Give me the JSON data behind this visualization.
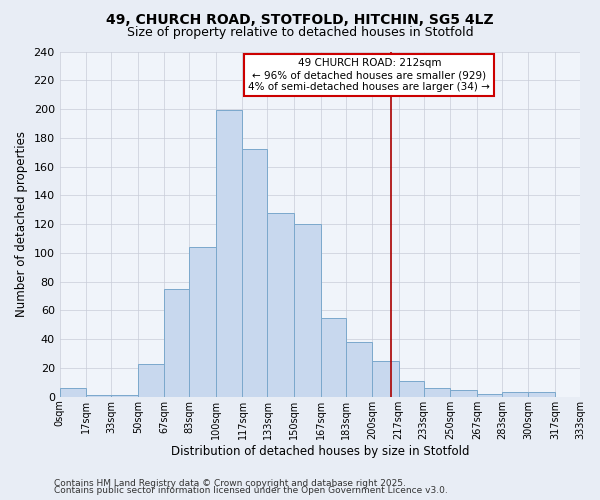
{
  "title": "49, CHURCH ROAD, STOTFOLD, HITCHIN, SG5 4LZ",
  "subtitle": "Size of property relative to detached houses in Stotfold",
  "xlabel": "Distribution of detached houses by size in Stotfold",
  "ylabel": "Number of detached properties",
  "bin_labels": [
    "0sqm",
    "17sqm",
    "33sqm",
    "50sqm",
    "67sqm",
    "83sqm",
    "100sqm",
    "117sqm",
    "133sqm",
    "150sqm",
    "167sqm",
    "183sqm",
    "200sqm",
    "217sqm",
    "233sqm",
    "250sqm",
    "267sqm",
    "283sqm",
    "300sqm",
    "317sqm",
    "333sqm"
  ],
  "bin_edges": [
    0,
    17,
    33,
    50,
    67,
    83,
    100,
    117,
    133,
    150,
    167,
    183,
    200,
    217,
    233,
    250,
    267,
    283,
    300,
    317,
    333
  ],
  "bar_heights": [
    6,
    1,
    1,
    23,
    75,
    104,
    199,
    172,
    128,
    120,
    55,
    38,
    25,
    11,
    6,
    5,
    2,
    3,
    3,
    0
  ],
  "bar_color": "#c8d8ee",
  "bar_edgecolor": "#7ba8cc",
  "grid_color": "#c8ccd8",
  "background_color": "#e8edf5",
  "plot_bg_color": "#f0f4fa",
  "vline_x": 212,
  "vline_color": "#aa0000",
  "annotation_text": "49 CHURCH ROAD: 212sqm\n← 96% of detached houses are smaller (929)\n4% of semi-detached houses are larger (34) →",
  "annotation_box_edgecolor": "#cc0000",
  "ylim": [
    0,
    240
  ],
  "yticks": [
    0,
    20,
    40,
    60,
    80,
    100,
    120,
    140,
    160,
    180,
    200,
    220,
    240
  ],
  "footer1": "Contains HM Land Registry data © Crown copyright and database right 2025.",
  "footer2": "Contains public sector information licensed under the Open Government Licence v3.0."
}
